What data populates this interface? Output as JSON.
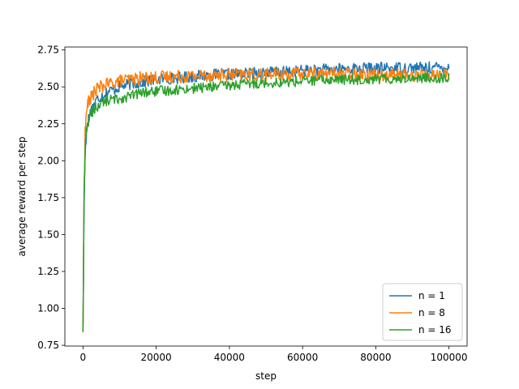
{
  "chart_data": {
    "type": "line",
    "title": "",
    "xlabel": "step",
    "ylabel": "average reward per step",
    "xlim": [
      -4950,
      104950
    ],
    "ylim": [
      0.745,
      2.77
    ],
    "xticks": [
      0,
      20000,
      40000,
      60000,
      80000,
      100000
    ],
    "xtick_labels": [
      "0",
      "20000",
      "40000",
      "60000",
      "80000",
      "100000"
    ],
    "yticks": [
      0.75,
      1.0,
      1.25,
      1.5,
      1.75,
      2.0,
      2.25,
      2.5,
      2.75
    ],
    "ytick_labels": [
      "0.75",
      "1.00",
      "1.25",
      "1.50",
      "1.75",
      "2.00",
      "2.25",
      "2.50",
      "2.75"
    ],
    "grid": false,
    "legend_position": "lower-right",
    "series": [
      {
        "name": "n = 1",
        "color": "#1f77b4",
        "x": [
          0,
          300,
          600,
          1000,
          1500,
          2000,
          3000,
          4000,
          5000,
          7000,
          10000,
          13000,
          16000,
          20000,
          25000,
          30000,
          35000,
          40000,
          45000,
          50000,
          55000,
          60000,
          65000,
          70000,
          75000,
          80000,
          85000,
          90000,
          95000,
          100000
        ],
        "values": [
          0.84,
          1.7,
          2.05,
          2.22,
          2.28,
          2.33,
          2.38,
          2.42,
          2.44,
          2.47,
          2.5,
          2.52,
          2.53,
          2.55,
          2.56,
          2.57,
          2.58,
          2.585,
          2.59,
          2.6,
          2.6,
          2.61,
          2.615,
          2.62,
          2.625,
          2.625,
          2.63,
          2.63,
          2.63,
          2.635
        ],
        "noise": 0.04
      },
      {
        "name": "n = 8",
        "color": "#ff7f0e",
        "x": [
          0,
          300,
          600,
          1000,
          1500,
          2000,
          3000,
          4000,
          5000,
          7000,
          10000,
          13000,
          16000,
          20000,
          25000,
          30000,
          35000,
          40000,
          45000,
          50000,
          55000,
          60000,
          65000,
          70000,
          75000,
          80000,
          85000,
          90000,
          95000,
          100000
        ],
        "values": [
          0.84,
          1.8,
          2.2,
          2.35,
          2.4,
          2.42,
          2.46,
          2.49,
          2.5,
          2.52,
          2.54,
          2.55,
          2.56,
          2.565,
          2.57,
          2.575,
          2.58,
          2.58,
          2.58,
          2.585,
          2.585,
          2.59,
          2.59,
          2.59,
          2.59,
          2.585,
          2.585,
          2.58,
          2.58,
          2.58
        ],
        "noise": 0.045
      },
      {
        "name": "n = 16",
        "color": "#2ca02c",
        "x": [
          0,
          300,
          600,
          1000,
          1500,
          2000,
          3000,
          4000,
          5000,
          7000,
          10000,
          13000,
          16000,
          20000,
          25000,
          30000,
          35000,
          40000,
          45000,
          50000,
          55000,
          60000,
          65000,
          70000,
          75000,
          80000,
          85000,
          90000,
          95000,
          100000
        ],
        "values": [
          0.84,
          1.75,
          2.1,
          2.22,
          2.27,
          2.31,
          2.35,
          2.37,
          2.39,
          2.41,
          2.42,
          2.44,
          2.46,
          2.47,
          2.48,
          2.49,
          2.5,
          2.51,
          2.52,
          2.53,
          2.53,
          2.54,
          2.545,
          2.55,
          2.55,
          2.555,
          2.555,
          2.56,
          2.56,
          2.56
        ],
        "noise": 0.035
      }
    ]
  }
}
